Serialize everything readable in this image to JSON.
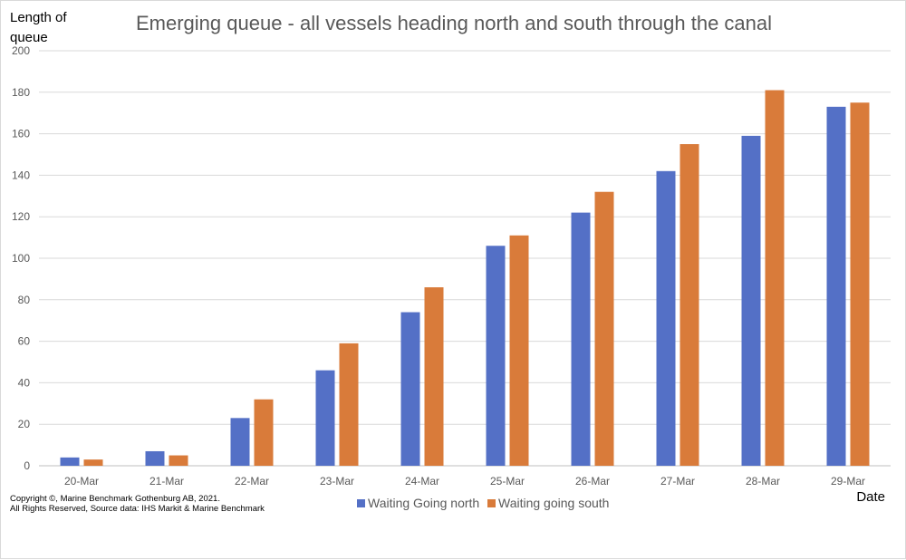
{
  "chart_data": {
    "type": "bar",
    "title": "Emerging queue - all vessels heading north and south through the canal",
    "ylabel_lines": [
      "Length of",
      "queue"
    ],
    "xlabel": "Date",
    "ylim": [
      0,
      200
    ],
    "yticks": [
      0,
      20,
      40,
      60,
      80,
      100,
      120,
      140,
      160,
      180,
      200
    ],
    "grid": true,
    "legend_position": "bottom",
    "categories": [
      "20-Mar",
      "21-Mar",
      "22-Mar",
      "23-Mar",
      "24-Mar",
      "25-Mar",
      "26-Mar",
      "27-Mar",
      "28-Mar",
      "29-Mar"
    ],
    "series": [
      {
        "name": "Waiting Going north",
        "color": "#5470c6",
        "values": [
          4,
          7,
          23,
          46,
          74,
          106,
          122,
          142,
          159,
          173
        ]
      },
      {
        "name": "Waiting going south",
        "color": "#d97b3a",
        "values": [
          3,
          5,
          32,
          59,
          86,
          111,
          132,
          155,
          181,
          175
        ]
      }
    ]
  },
  "copyright": {
    "line1": "Copyright ©, Marine Benchmark Gothenburg AB, 2021.",
    "line2": "All Rights Reserved, Source data: IHS Markit & Marine Benchmark"
  }
}
